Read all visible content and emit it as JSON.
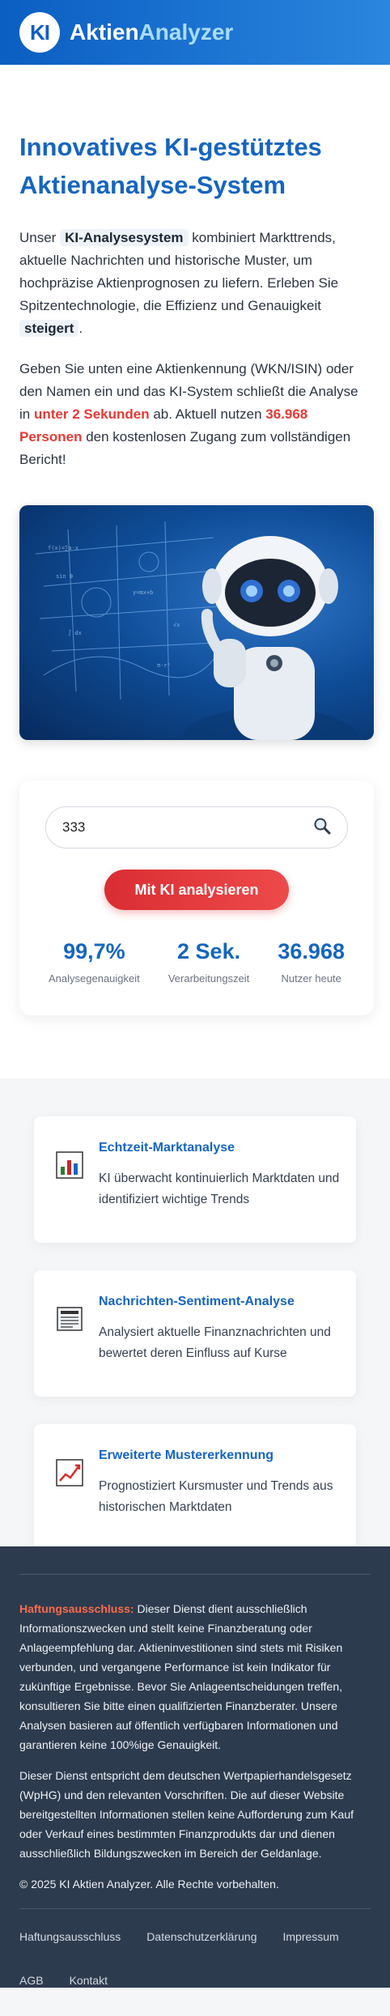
{
  "header": {
    "logo_text": "KI",
    "brand_part1": "Aktien",
    "brand_part2": "Analyzer"
  },
  "hero": {
    "title": "Innovatives KI-gestütztes Aktienanalyse-System",
    "p1_pre": "Unser ",
    "p1_chip": "KI-Analysesystem",
    "p1_mid": " kombiniert Markttrends, aktuelle Nachrichten und historische Muster, um hochpräzise Aktienprognosen zu liefern. Erleben Sie Spitzentechnologie, die Effizienz und Genauigkeit ",
    "p1_chip2": "steigert",
    "p1_end": ".",
    "p2_pre": "Geben Sie unten eine Aktienkennung (WKN/ISIN) oder den Namen ein und das KI-System schließt die Analyse in ",
    "p2_red1": "unter 2 Sekunden",
    "p2_mid": " ab. Aktuell nutzen ",
    "p2_red2": "36.968 Personen",
    "p2_end": " den kostenlosen Zugang zum vollständigen Bericht!"
  },
  "search": {
    "value": "333",
    "icon": "magnifier-icon",
    "button_label": "Mit KI analysieren"
  },
  "stats": [
    {
      "value": "99,7%",
      "label": "Analysegenauigkeit"
    },
    {
      "value": "2 Sek.",
      "label": "Verarbeitungszeit"
    },
    {
      "value": "36.968",
      "label": "Nutzer heute"
    }
  ],
  "features": [
    {
      "icon": "bar-chart-icon",
      "title": "Echtzeit-Marktanalyse",
      "text": "KI überwacht kontinuierlich Marktdaten und identifiziert wichtige Trends"
    },
    {
      "icon": "newspaper-icon",
      "title": "Nachrichten-Sentiment-Analyse",
      "text": "Analysiert aktuelle Finanznachrichten und bewertet deren Einfluss auf Kurse"
    },
    {
      "icon": "trend-chart-icon",
      "title": "Erweiterte Mustererkennung",
      "text": "Prognostiziert Kursmuster und Trends aus historischen Marktdaten"
    }
  ],
  "footer": {
    "disclaimer_label": "Haftungsausschluss:",
    "disclaimer_text": " Dieser Dienst dient ausschließlich Informationszwecken und stellt keine Finanzberatung oder Anlageempfehlung dar. Aktieninvestitionen sind stets mit Risiken verbunden, und vergangene Performance ist kein Indikator für zukünftige Ergebnisse. Bevor Sie Anlageentscheidungen treffen, konsultieren Sie bitte einen qualifizierten Finanzberater. Unsere Analysen basieren auf öffentlich verfügbaren Informationen und garantieren keine 100%ige Genauigkeit.",
    "legal_text": "Dieser Dienst entspricht dem deutschen Wertpapierhandelsgesetz (WpHG) und den relevanten Vorschriften. Die auf dieser Website bereitgestellten Informationen stellen keine Aufforderung zum Kauf oder Verkauf eines bestimmten Finanzprodukts dar und dienen ausschließlich Bildungszwecken im Bereich der Geldanlage.",
    "copyright": "© 2025 KI Aktien Analyzer. Alle Rechte vorbehalten.",
    "links": [
      "Haftungsausschluss",
      "Datenschutzerklärung",
      "Impressum",
      "AGB",
      "Kontakt"
    ]
  },
  "colors": {
    "primary": "#1565c0",
    "accent_red": "#e53935",
    "footer_bg": "#2d3b4e"
  }
}
